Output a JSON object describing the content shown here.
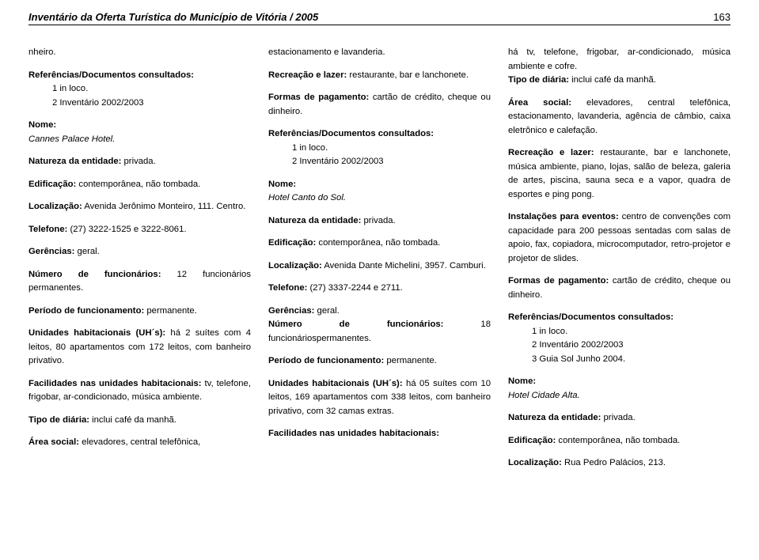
{
  "header": {
    "title": "Inventário da Oferta Turística do Município de Vitória / 2005",
    "pageNumber": "163"
  },
  "col1": {
    "p0": "nheiro.",
    "p1_label": "Referências/Documentos consultados:",
    "p1_line1": "1 in loco.",
    "p1_line2": "2 Inventário 2002/2003",
    "p2_label": "Nome:",
    "p2_val": "Cannes Palace Hotel.",
    "p3_label": "Natureza da entidade:",
    "p3_val": " privada.",
    "p4_label": "Edificação:",
    "p4_val": " contemporânea, não tombada.",
    "p5_label": "Localização:",
    "p5_val": " Avenida Jerônimo Monteiro, 111. Centro.",
    "p6_label": "Telefone:",
    "p6_val": " (27) 3222-1525 e 3222-8061.",
    "p7_label": "Gerências:",
    "p7_val": " geral.",
    "p8_label": "Número de funcionários:",
    "p8_val": " 12 funcionários permanentes.",
    "p9_label": "Período de funcionamento:",
    "p9_val": " permanente.",
    "p10_label": "Unidades habitacionais (UH´s):",
    "p10_val": " há 2 suítes com 4 leitos, 80 apartamentos com 172 leitos, com banheiro privativo.",
    "p11_label": "Facilidades nas unidades habitacionais:",
    "p11_val": " tv, telefone, frigobar, ar-condicionado, música ambiente.",
    "p12_label": "Tipo de diária:",
    "p12_val": " inclui café da manhã.",
    "p13_label": "Área social:",
    "p13_val": " elevadores, central telefônica,"
  },
  "col2": {
    "p0": "estacionamento e lavanderia.",
    "p1_label": "Recreação e lazer:",
    "p1_val": " restaurante, bar e lanchonete.",
    "p2_label": "Formas de pagamento:",
    "p2_val": " cartão de crédito, cheque ou dinheiro.",
    "p3_label": "Referências/Documentos consultados:",
    "p3_line1": "1 in loco.",
    "p3_line2": "2 Inventário 2002/2003",
    "p4_label": "Nome:",
    "p4_val": "Hotel Canto do Sol.",
    "p5_label": "Natureza da entidade:",
    "p5_val": " privada.",
    "p6_label": "Edificação:",
    "p6_val": " contemporânea, não tombada.",
    "p7_label": "Localização:",
    "p7_val": " Avenida Dante Michelini, 3957. Camburi.",
    "p8_label": "Telefone:",
    "p8_val": " (27) 3337-2244 e 2711.",
    "p9_label": "Gerências:",
    "p9_val": " geral.",
    "p10_label": "Número de funcionários:",
    "p10_val": " 18 funcionáriospermanentes.",
    "p11_label": "Período de funcionamento:",
    "p11_val": " permanente.",
    "p12_label": "Unidades habitacionais (UH´s):",
    "p12_val": " há 05 suítes com 10 leitos, 169 apartamentos com 338 leitos, com banheiro privativo, com 32 camas extras.",
    "p13_label": "Facilidades nas unidades habitacionais:"
  },
  "col3": {
    "p0": "há tv, telefone, frigobar, ar-condicionado, música ambiente e cofre.",
    "p1_label": "Tipo de diária:",
    "p1_val": " inclui café da manhã.",
    "p2_label": "Área social:",
    "p2_val": " elevadores, central telefônica, estacionamento, lavanderia, agência de câmbio, caixa eletrônico e calefação.",
    "p3_label": "Recreação e lazer:",
    "p3_val": " restaurante, bar e lanchonete, música ambiente, piano, lojas, salão de beleza, galeria de artes, piscina, sauna seca e a vapor, quadra de esportes e ping pong.",
    "p4_label": "Instalações para eventos:",
    "p4_val": " centro de convenções com capacidade para 200 pessoas sentadas com salas de apoio, fax, copiadora, microcomputador, retro-projetor e projetor de slides.",
    "p5_label": "Formas de pagamento:",
    "p5_val": " cartão de crédito, cheque ou dinheiro.",
    "p6_label": "Referências/Documentos consultados:",
    "p6_line1": "1 in loco.",
    "p6_line2": "2 Inventário 2002/2003",
    "p6_line3": "3 Guia Sol Junho 2004.",
    "p7_label": "Nome:",
    "p7_val": "Hotel Cidade Alta.",
    "p8_label": "Natureza da entidade:",
    "p8_val": " privada.",
    "p9_label": "Edificação:",
    "p9_val": " contemporânea, não tombada.",
    "p10_label": "Localização:",
    "p10_val": " Rua Pedro Palácios, 213."
  }
}
